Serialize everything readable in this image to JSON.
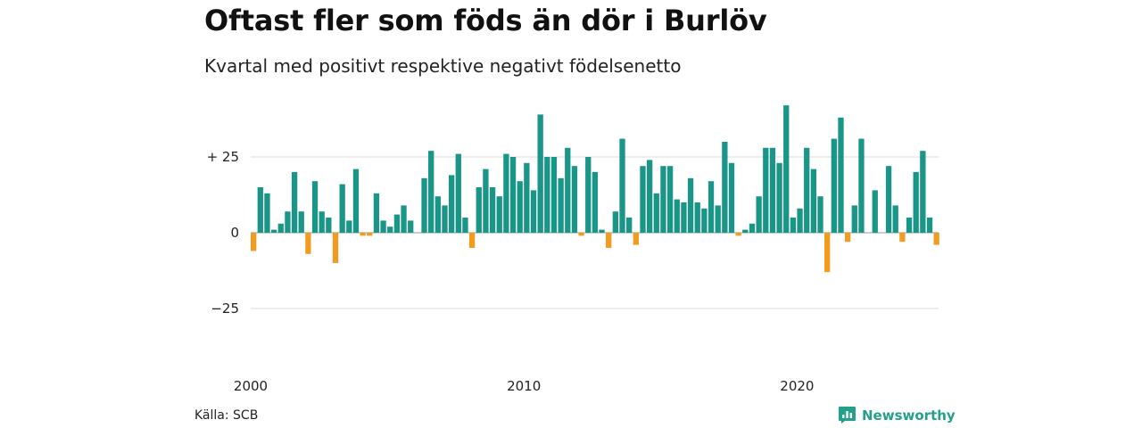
{
  "title": "Oftast fler som föds än dör i Burlöv",
  "subtitle": "Kvartal med positivt respektive negativt födelsenetto",
  "source": "Källa: SCB",
  "brand": {
    "name": "Newsworthy",
    "icon": "newsworthy-logo-icon"
  },
  "colors": {
    "positive": "#1a9688",
    "negative": "#f29c1f",
    "grid": "#dddddd",
    "baseline": "#999999"
  },
  "chart_data": {
    "type": "bar",
    "x_start": "2000 Q1",
    "x_ticks": [
      "2000",
      "2010",
      "2020"
    ],
    "y_ticks": [
      {
        "value": 25,
        "label": "+ 25"
      },
      {
        "value": 0,
        "label": "0"
      },
      {
        "value": -25,
        "label": "−25"
      }
    ],
    "ylim": [
      -30,
      45
    ],
    "values": [
      -6,
      15,
      13,
      1,
      3,
      7,
      20,
      7,
      -7,
      17,
      7,
      5,
      -10,
      16,
      4,
      21,
      -1,
      -1,
      13,
      4,
      2,
      6,
      9,
      4,
      0,
      18,
      27,
      12,
      9,
      19,
      26,
      5,
      -5,
      15,
      21,
      15,
      12,
      26,
      25,
      17,
      23,
      14,
      39,
      25,
      25,
      18,
      28,
      22,
      -1,
      25,
      20,
      1,
      -5,
      7,
      31,
      5,
      -4,
      22,
      24,
      13,
      22,
      22,
      11,
      10,
      18,
      10,
      8,
      17,
      9,
      30,
      23,
      -1,
      1,
      3,
      12,
      28,
      28,
      23,
      42,
      5,
      8,
      28,
      21,
      12,
      -13,
      31,
      38,
      -3,
      9,
      31,
      0,
      14,
      0,
      22,
      9,
      -3,
      5,
      20,
      27,
      5,
      -4
    ]
  }
}
